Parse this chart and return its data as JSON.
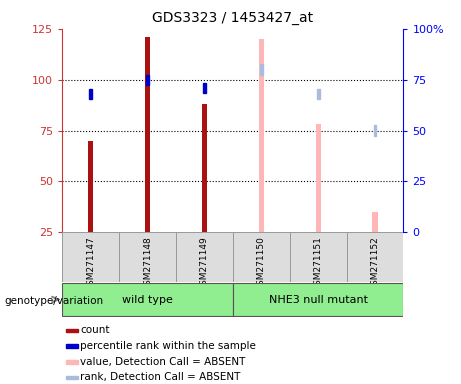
{
  "title": "GDS3323 / 1453427_at",
  "samples": [
    "GSM271147",
    "GSM271148",
    "GSM271149",
    "GSM271150",
    "GSM271151",
    "GSM271152"
  ],
  "groups": {
    "wild type": [
      0,
      1,
      2
    ],
    "NHE3 null mutant": [
      3,
      4,
      5
    ]
  },
  "count_values": [
    70,
    121,
    88,
    null,
    null,
    null
  ],
  "percentile_values": [
    68,
    75,
    71,
    null,
    null,
    null
  ],
  "absent_value_values": [
    null,
    null,
    null,
    120,
    78,
    35
  ],
  "absent_rank_values": [
    null,
    null,
    null,
    80,
    68,
    50
  ],
  "detection_absent": [
    false,
    false,
    false,
    true,
    true,
    true
  ],
  "left_ylim": [
    25,
    125
  ],
  "left_yticks": [
    25,
    50,
    75,
    100,
    125
  ],
  "right_ylim": [
    0,
    100
  ],
  "right_yticks": [
    0,
    25,
    50,
    75,
    100
  ],
  "count_color": "#AA1111",
  "percentile_color": "#0000CC",
  "absent_value_color": "#FFB6B6",
  "absent_rank_color": "#AABBDD",
  "bar_width": 0.09,
  "percentile_sq_size": 0.05,
  "group_color": "#90EE90",
  "sample_box_color": "#DDDDDD",
  "grid_yticks": [
    50,
    75,
    100
  ]
}
